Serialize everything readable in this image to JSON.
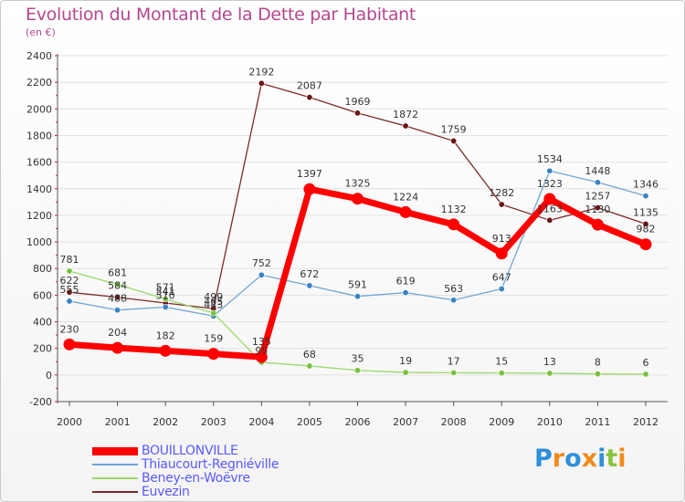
{
  "header": {
    "title": "Evolution du Montant de la Dette par Habitant",
    "subtitle": "(en €)"
  },
  "logo": {
    "text": "Proxiti",
    "letters": [
      "P",
      "r",
      "o",
      "x",
      "i",
      "t",
      "i"
    ],
    "colors": [
      "#2f8fd8",
      "#f08a1c",
      "#2f8fd8",
      "#f08a1c",
      "#2f8fd8",
      "#8ac43f",
      "#f08a1c"
    ]
  },
  "chart_data": {
    "type": "line",
    "title": "Evolution du Montant de la Dette par Habitant",
    "subtitle": "(en €)",
    "xlabel": "",
    "ylabel": "",
    "x": [
      "2000",
      "2001",
      "2002",
      "2003",
      "2004",
      "2005",
      "2006",
      "2007",
      "2008",
      "2009",
      "2010",
      "2011",
      "2012"
    ],
    "ylim": [
      -200,
      2400
    ],
    "yticks": [
      -200,
      0,
      200,
      400,
      600,
      800,
      1000,
      1200,
      1400,
      1600,
      1800,
      2000,
      2200,
      2400
    ],
    "grid": true,
    "legend_position": "bottom-left",
    "series": [
      {
        "name": "Euvezin",
        "color": "#7a2a2a",
        "marker": "#6b1515",
        "values": [
          622,
          584,
          541,
          499,
          2192,
          2087,
          1969,
          1872,
          1759,
          1282,
          1163,
          1257,
          1135
        ]
      },
      {
        "name": "Thiaucourt-Regniéville",
        "color": "#6fa5d4",
        "marker": "#3a82c4",
        "values": [
          555,
          488,
          510,
          443,
          752,
          672,
          591,
          619,
          563,
          647,
          1534,
          1448,
          1346
        ]
      },
      {
        "name": "Beney-en-Woëvre",
        "color": "#99d86a",
        "marker": "#77c23c",
        "values": [
          781,
          681,
          571,
          465,
          95,
          68,
          35,
          19,
          17,
          15,
          13,
          8,
          6
        ]
      },
      {
        "name": "BOUILLONVILLE",
        "color": "#ff0000",
        "marker": "#ff0000",
        "values": [
          230,
          204,
          182,
          159,
          135,
          1397,
          1325,
          1224,
          1132,
          913,
          1323,
          1130,
          982
        ]
      }
    ]
  }
}
